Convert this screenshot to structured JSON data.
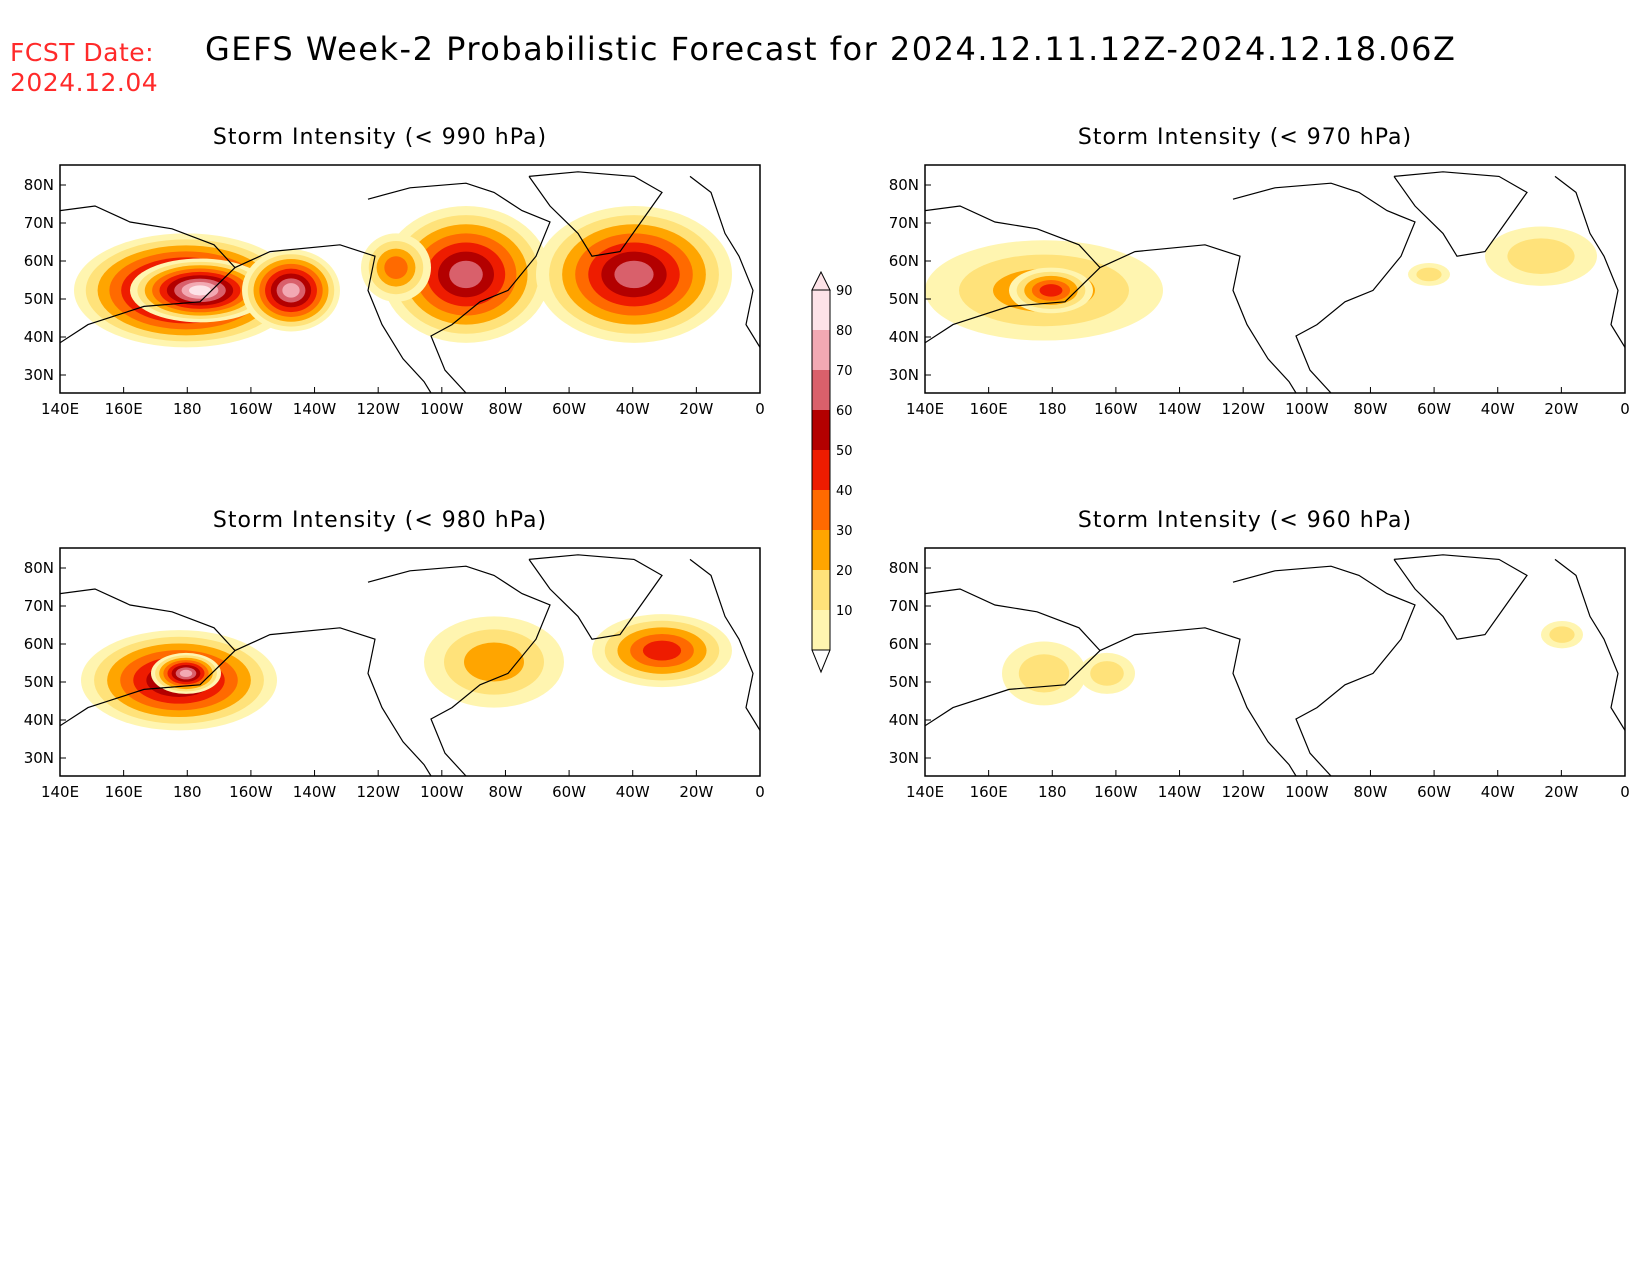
{
  "header": {
    "fcst_label": "FCST Date:",
    "fcst_date": "2024.12.04",
    "title": "GEFS Week-2 Probabilistic Forecast for 2024.12.11.12Z-2024.12.18.06Z"
  },
  "axes": {
    "lon_labels": [
      "140E",
      "160E",
      "180",
      "160W",
      "140W",
      "120W",
      "100W",
      "80W",
      "60W",
      "40W",
      "20W",
      "0"
    ],
    "lat_labels": [
      "30N",
      "40N",
      "50N",
      "60N",
      "70N",
      "80N"
    ]
  },
  "colorbar": {
    "levels": [
      "10",
      "20",
      "30",
      "40",
      "50",
      "60",
      "70",
      "80",
      "90"
    ],
    "colors": [
      "#fff5b0",
      "#ffe27a",
      "#ffa500",
      "#ff6a00",
      "#ee1c00",
      "#b30000",
      "#d9606b",
      "#f2a9b3",
      "#fde3e8"
    ]
  },
  "panels": [
    {
      "id": "p990",
      "title": "Storm Intensity (< 990 hPa)",
      "intensity": 5
    },
    {
      "id": "p970",
      "title": "Storm Intensity (< 970 hPa)",
      "intensity": 2
    },
    {
      "id": "p980",
      "title": "Storm Intensity (< 980 hPa)",
      "intensity": 4
    },
    {
      "id": "p960",
      "title": "Storm Intensity (< 960 hPa)",
      "intensity": 1
    }
  ]
}
